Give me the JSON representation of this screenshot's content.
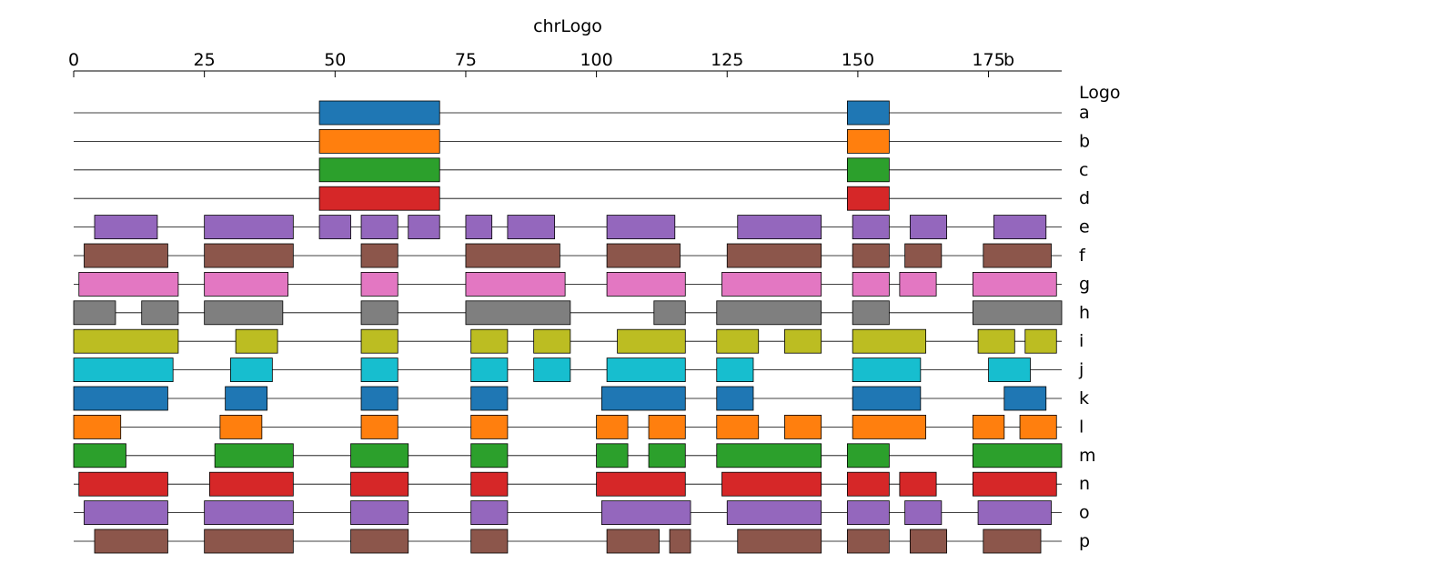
{
  "chart_data": {
    "type": "bar",
    "title": "chrLogo",
    "axis_unit": "b",
    "row_title": "Logo",
    "xlim": [
      0,
      189
    ],
    "xticks": [
      0,
      25,
      50,
      75,
      100,
      125,
      150,
      175
    ],
    "palette": [
      "#1f77b4",
      "#ff7f0e",
      "#2ca02c",
      "#d62728",
      "#9467bd",
      "#8c564b",
      "#e377c2",
      "#7f7f7f",
      "#bcbd22",
      "#17becf"
    ],
    "tracks": [
      {
        "name": "a",
        "color": "#1f77b4",
        "segments": [
          [
            47,
            70
          ],
          [
            148,
            156
          ]
        ]
      },
      {
        "name": "b",
        "color": "#ff7f0e",
        "segments": [
          [
            47,
            70
          ],
          [
            148,
            156
          ]
        ]
      },
      {
        "name": "c",
        "color": "#2ca02c",
        "segments": [
          [
            47,
            70
          ],
          [
            148,
            156
          ]
        ]
      },
      {
        "name": "d",
        "color": "#d62728",
        "segments": [
          [
            47,
            70
          ],
          [
            148,
            156
          ]
        ]
      },
      {
        "name": "e",
        "color": "#9467bd",
        "segments": [
          [
            4,
            16
          ],
          [
            25,
            42
          ],
          [
            47,
            53
          ],
          [
            55,
            62
          ],
          [
            64,
            70
          ],
          [
            75,
            80
          ],
          [
            83,
            92
          ],
          [
            102,
            115
          ],
          [
            127,
            143
          ],
          [
            149,
            156
          ],
          [
            160,
            167
          ],
          [
            176,
            186
          ]
        ]
      },
      {
        "name": "f",
        "color": "#8c564b",
        "segments": [
          [
            2,
            18
          ],
          [
            25,
            42
          ],
          [
            55,
            62
          ],
          [
            75,
            93
          ],
          [
            102,
            116
          ],
          [
            125,
            143
          ],
          [
            149,
            156
          ],
          [
            159,
            166
          ],
          [
            174,
            187
          ]
        ]
      },
      {
        "name": "g",
        "color": "#e377c2",
        "segments": [
          [
            1,
            20
          ],
          [
            25,
            41
          ],
          [
            55,
            62
          ],
          [
            75,
            94
          ],
          [
            102,
            117
          ],
          [
            124,
            143
          ],
          [
            149,
            156
          ],
          [
            158,
            165
          ],
          [
            172,
            188
          ]
        ]
      },
      {
        "name": "h",
        "color": "#7f7f7f",
        "segments": [
          [
            0,
            8
          ],
          [
            13,
            20
          ],
          [
            25,
            40
          ],
          [
            55,
            62
          ],
          [
            75,
            95
          ],
          [
            111,
            117
          ],
          [
            123,
            143
          ],
          [
            149,
            156
          ],
          [
            172,
            189
          ]
        ]
      },
      {
        "name": "i",
        "color": "#bcbd22",
        "segments": [
          [
            0,
            20
          ],
          [
            31,
            39
          ],
          [
            55,
            62
          ],
          [
            76,
            83
          ],
          [
            88,
            95
          ],
          [
            104,
            117
          ],
          [
            123,
            131
          ],
          [
            136,
            143
          ],
          [
            149,
            163
          ],
          [
            173,
            180
          ],
          [
            182,
            188
          ]
        ]
      },
      {
        "name": "j",
        "color": "#17becf",
        "segments": [
          [
            0,
            19
          ],
          [
            30,
            38
          ],
          [
            55,
            62
          ],
          [
            76,
            83
          ],
          [
            88,
            95
          ],
          [
            102,
            117
          ],
          [
            123,
            130
          ],
          [
            149,
            162
          ],
          [
            175,
            183
          ]
        ]
      },
      {
        "name": "k",
        "color": "#1f77b4",
        "segments": [
          [
            0,
            18
          ],
          [
            29,
            37
          ],
          [
            55,
            62
          ],
          [
            76,
            83
          ],
          [
            101,
            117
          ],
          [
            123,
            130
          ],
          [
            149,
            162
          ],
          [
            178,
            186
          ]
        ]
      },
      {
        "name": "l",
        "color": "#ff7f0e",
        "segments": [
          [
            0,
            9
          ],
          [
            28,
            36
          ],
          [
            55,
            62
          ],
          [
            76,
            83
          ],
          [
            100,
            106
          ],
          [
            110,
            117
          ],
          [
            123,
            131
          ],
          [
            136,
            143
          ],
          [
            149,
            163
          ],
          [
            172,
            178
          ],
          [
            181,
            188
          ]
        ]
      },
      {
        "name": "m",
        "color": "#2ca02c",
        "segments": [
          [
            0,
            10
          ],
          [
            27,
            42
          ],
          [
            53,
            64
          ],
          [
            76,
            83
          ],
          [
            100,
            106
          ],
          [
            110,
            117
          ],
          [
            123,
            143
          ],
          [
            148,
            156
          ],
          [
            172,
            189
          ]
        ]
      },
      {
        "name": "n",
        "color": "#d62728",
        "segments": [
          [
            1,
            18
          ],
          [
            26,
            42
          ],
          [
            53,
            64
          ],
          [
            76,
            83
          ],
          [
            100,
            117
          ],
          [
            124,
            143
          ],
          [
            148,
            156
          ],
          [
            158,
            165
          ],
          [
            172,
            188
          ]
        ]
      },
      {
        "name": "o",
        "color": "#9467bd",
        "segments": [
          [
            2,
            18
          ],
          [
            25,
            42
          ],
          [
            53,
            64
          ],
          [
            76,
            83
          ],
          [
            101,
            118
          ],
          [
            125,
            143
          ],
          [
            148,
            156
          ],
          [
            159,
            166
          ],
          [
            173,
            187
          ]
        ]
      },
      {
        "name": "p",
        "color": "#8c564b",
        "segments": [
          [
            4,
            18
          ],
          [
            25,
            42
          ],
          [
            53,
            64
          ],
          [
            76,
            83
          ],
          [
            102,
            112
          ],
          [
            114,
            118
          ],
          [
            127,
            143
          ],
          [
            148,
            156
          ],
          [
            160,
            167
          ],
          [
            174,
            185
          ]
        ]
      }
    ]
  }
}
